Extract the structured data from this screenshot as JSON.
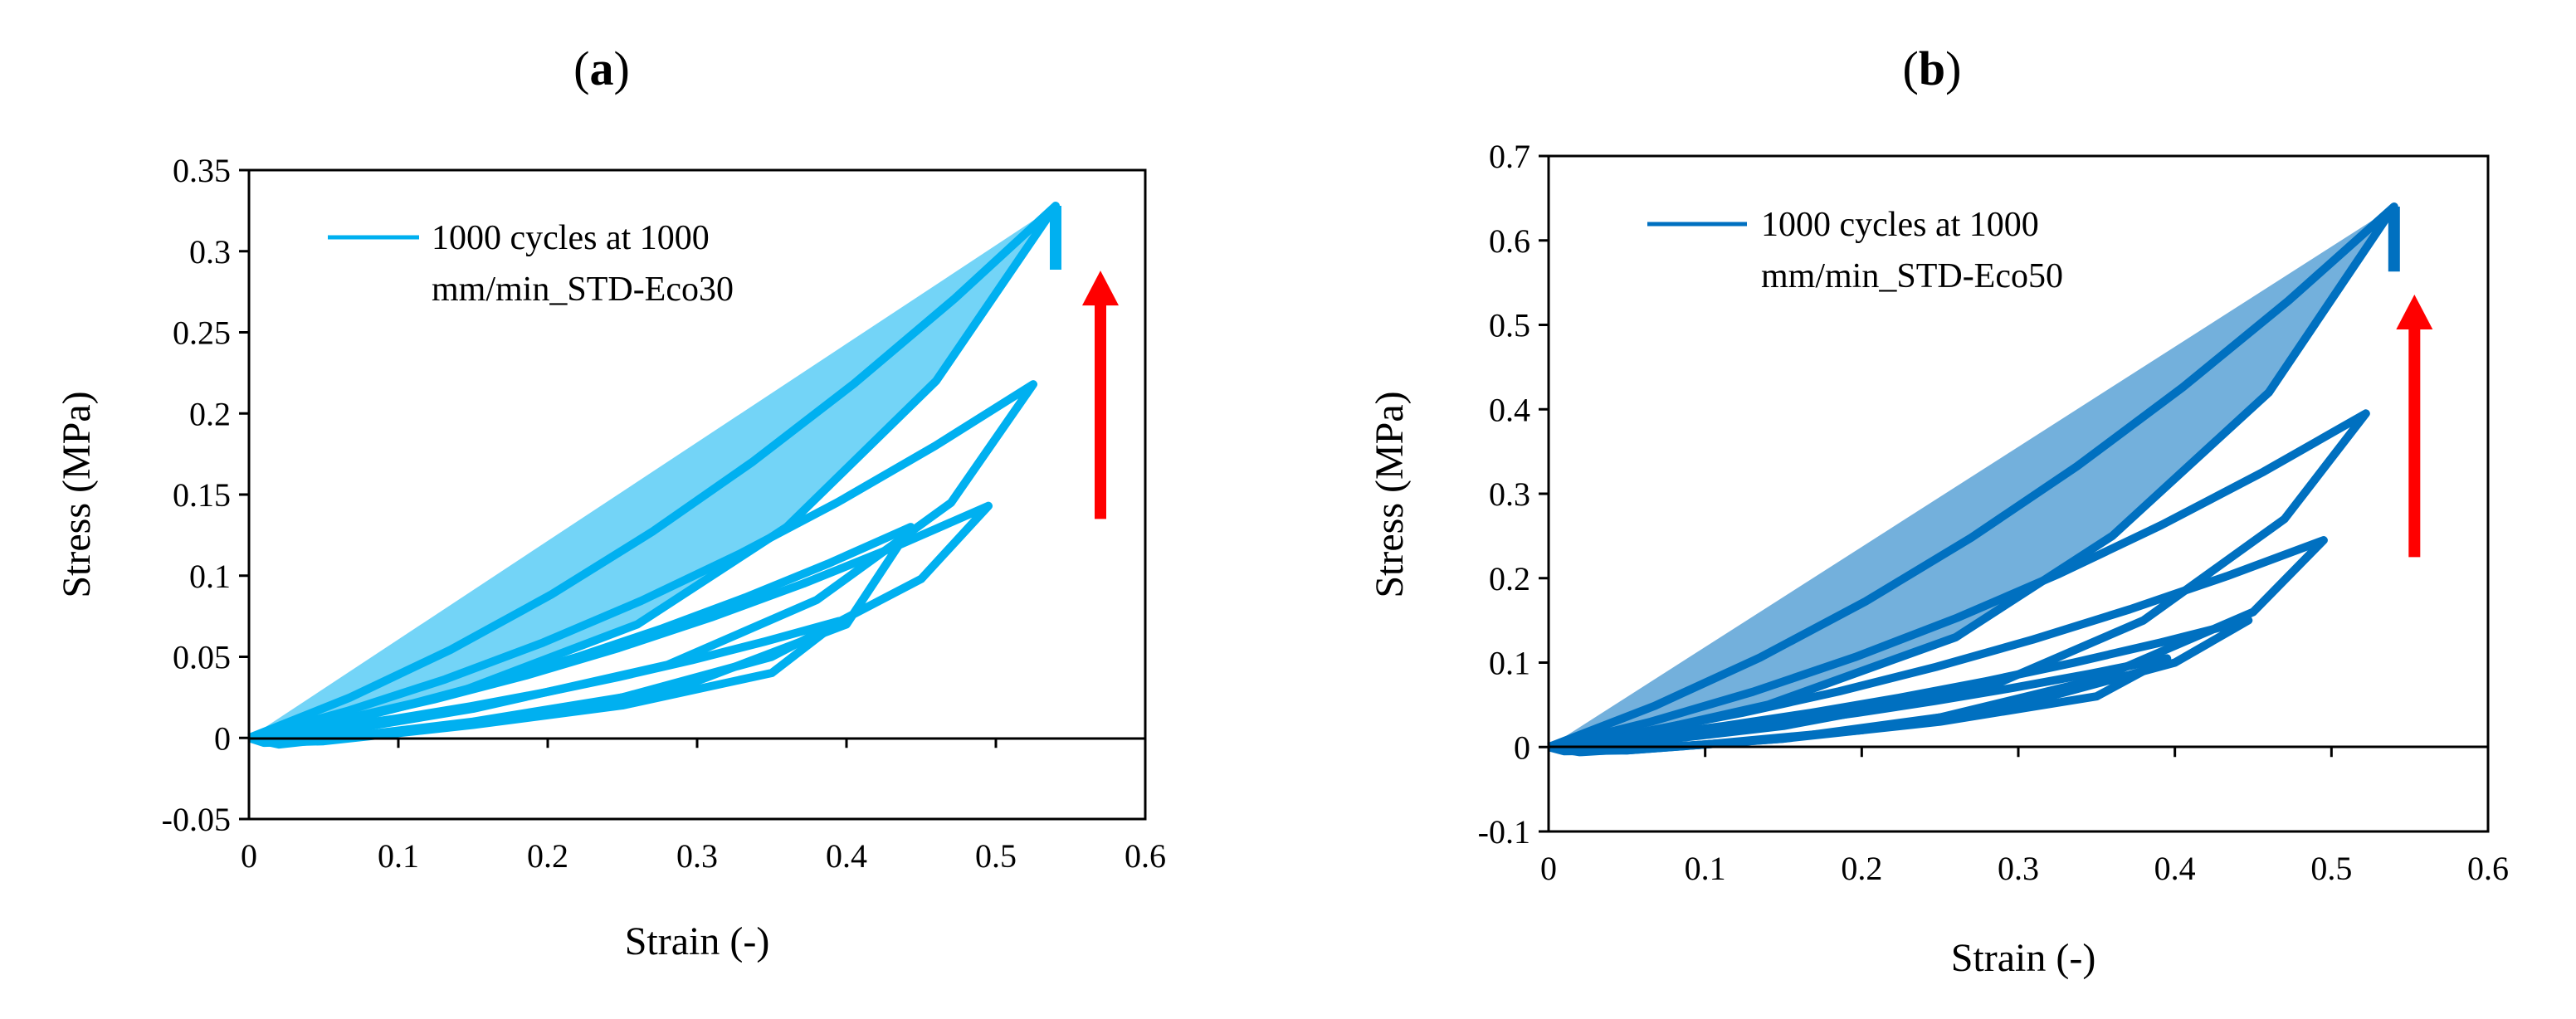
{
  "chart_data": [
    {
      "type": "line",
      "panel": "a",
      "panel_label": "a",
      "xlabel": "Strain (-)",
      "ylabel": "Stress (MPa)",
      "xlim": [
        0,
        0.6
      ],
      "ylim": [
        -0.05,
        0.35
      ],
      "xticks": [
        0,
        0.1,
        0.2,
        0.3,
        0.4,
        0.5,
        0.6
      ],
      "xtick_labels": [
        "0",
        "0.1",
        "0.2",
        "0.3",
        "0.4",
        "0.5",
        "0.6"
      ],
      "yticks": [
        -0.05,
        0,
        0.05,
        0.1,
        0.15,
        0.2,
        0.25,
        0.3,
        0.35
      ],
      "ytick_labels": [
        "-0.05",
        "0",
        "0.05",
        "0.1",
        "0.15",
        "0.2",
        "0.25",
        "0.3",
        "0.35"
      ],
      "grid": false,
      "legend_position": "top-left",
      "series": [
        {
          "name": "1000 cycles at 1000 mm/min_STD-Eco30",
          "color": "#00b0f0",
          "cycles": [
            {
              "peak": [
                0.395,
                0.072
              ],
              "unload": [
                [
                  0.35,
                  0.04
                ],
                [
                  0.25,
                  0.02
                ],
                [
                  0.15,
                  0.008
                ],
                [
                  0.05,
                  -0.002
                ],
                [
                  0.01,
                  -0.003
                ]
              ]
            },
            {
              "peak": [
                0.443,
                0.13
              ],
              "unload": [
                [
                  0.4,
                  0.07
                ],
                [
                  0.3,
                  0.035
                ],
                [
                  0.2,
                  0.015
                ],
                [
                  0.1,
                  0.004
                ],
                [
                  0.02,
                  -0.004
                ]
              ]
            },
            {
              "peak": [
                0.495,
                0.143
              ],
              "unload": [
                [
                  0.45,
                  0.098
                ],
                [
                  0.35,
                  0.05
                ],
                [
                  0.25,
                  0.025
                ],
                [
                  0.15,
                  0.01
                ],
                [
                  0.05,
                  -0.001
                ]
              ]
            },
            {
              "peak": [
                0.525,
                0.218
              ],
              "unload": [
                [
                  0.47,
                  0.145
                ],
                [
                  0.38,
                  0.085
                ],
                [
                  0.28,
                  0.045
                ],
                [
                  0.15,
                  0.018
                ],
                [
                  0.02,
                  -0.002
                ]
              ]
            },
            {
              "peak": [
                0.54,
                0.328
              ],
              "unload": [
                [
                  0.46,
                  0.22
                ],
                [
                  0.36,
                  0.13
                ],
                [
                  0.26,
                  0.07
                ],
                [
                  0.14,
                  0.028
                ],
                [
                  0.02,
                  0.0
                ]
              ]
            }
          ]
        }
      ],
      "annotation": {
        "type": "arrow",
        "direction": "up",
        "color": "#ff0000",
        "x": 0.57,
        "y_from": 0.135,
        "y_to": 0.285
      }
    },
    {
      "type": "line",
      "panel": "b",
      "panel_label": "b",
      "xlabel": "Strain (-)",
      "ylabel": "Stress (MPa)",
      "xlim": [
        0,
        0.6
      ],
      "ylim": [
        -0.1,
        0.7
      ],
      "xticks": [
        0,
        0.1,
        0.2,
        0.3,
        0.4,
        0.5,
        0.6
      ],
      "xtick_labels": [
        "0",
        "0.1",
        "0.2",
        "0.3",
        "0.4",
        "0.5",
        "0.6"
      ],
      "yticks": [
        -0.1,
        0,
        0.1,
        0.2,
        0.3,
        0.4,
        0.5,
        0.6,
        0.7
      ],
      "ytick_labels": [
        "-0.1",
        "0",
        "0.1",
        "0.2",
        "0.3",
        "0.4",
        "0.5",
        "0.6",
        "0.7"
      ],
      "grid": false,
      "legend_position": "top-left",
      "series": [
        {
          "name": "1000 cycles at 1000 mm/min_STD-Eco50",
          "color": "#0070c0",
          "cycles": [
            {
              "peak": [
                0.395,
                0.105
              ],
              "unload": [
                [
                  0.35,
                  0.06
                ],
                [
                  0.25,
                  0.03
                ],
                [
                  0.15,
                  0.01
                ],
                [
                  0.05,
                  -0.004
                ],
                [
                  0.01,
                  -0.005
                ]
              ]
            },
            {
              "peak": [
                0.447,
                0.15
              ],
              "unload": [
                [
                  0.4,
                  0.1
                ],
                [
                  0.3,
                  0.05
                ],
                [
                  0.2,
                  0.02
                ],
                [
                  0.1,
                  0.003
                ],
                [
                  0.02,
                  -0.006
                ]
              ]
            },
            {
              "peak": [
                0.495,
                0.245
              ],
              "unload": [
                [
                  0.45,
                  0.16
                ],
                [
                  0.35,
                  0.08
                ],
                [
                  0.25,
                  0.035
                ],
                [
                  0.15,
                  0.01
                ],
                [
                  0.05,
                  -0.004
                ]
              ]
            },
            {
              "peak": [
                0.522,
                0.395
              ],
              "unload": [
                [
                  0.47,
                  0.27
                ],
                [
                  0.38,
                  0.15
                ],
                [
                  0.28,
                  0.07
                ],
                [
                  0.15,
                  0.025
                ],
                [
                  0.02,
                  -0.003
                ]
              ]
            },
            {
              "peak": [
                0.54,
                0.64
              ],
              "unload": [
                [
                  0.46,
                  0.42
                ],
                [
                  0.36,
                  0.25
                ],
                [
                  0.26,
                  0.13
                ],
                [
                  0.14,
                  0.05
                ],
                [
                  0.02,
                  0.0
                ]
              ]
            }
          ]
        }
      ],
      "annotation": {
        "type": "arrow",
        "direction": "up",
        "color": "#ff0000",
        "x": 0.553,
        "y_from": 0.225,
        "y_to": 0.53
      }
    }
  ]
}
